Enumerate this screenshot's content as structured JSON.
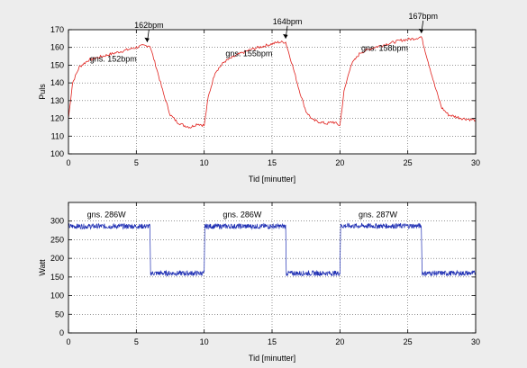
{
  "chart_data": [
    {
      "type": "line",
      "title": "",
      "xlabel": "Tid [minutter]",
      "ylabel": "Puls",
      "xlim": [
        0,
        30
      ],
      "ylim": [
        100,
        170
      ],
      "xticks": [
        0,
        5,
        10,
        15,
        20,
        25,
        30
      ],
      "yticks": [
        100,
        110,
        120,
        130,
        140,
        150,
        160,
        170
      ],
      "grid": true,
      "series": [
        {
          "color": "#e0201c",
          "x": [
            0,
            0.3,
            0.8,
            1.5,
            2.5,
            3.5,
            4.5,
            5.5,
            6.0,
            6.5,
            7.0,
            7.5,
            8.0,
            8.5,
            9.0,
            9.5,
            10.0,
            10.3,
            10.8,
            11.5,
            12.5,
            13.5,
            14.5,
            15.5,
            16.0,
            16.5,
            17.0,
            17.5,
            18.0,
            18.5,
            19.0,
            19.5,
            20.0,
            20.3,
            20.8,
            21.5,
            22.5,
            23.5,
            24.5,
            25.5,
            26.0,
            26.5,
            27.0,
            27.5,
            28.0,
            28.5,
            29.0,
            30.0
          ],
          "y": [
            120,
            140,
            149,
            153,
            155,
            157,
            159,
            161,
            161,
            148,
            134,
            122,
            118,
            116,
            115,
            117,
            116,
            132,
            146,
            152,
            156,
            159,
            161,
            163,
            163,
            150,
            136,
            124,
            119,
            118,
            117,
            118,
            116,
            135,
            150,
            157,
            160,
            162,
            164,
            165,
            166,
            152,
            138,
            126,
            122,
            121,
            120,
            119
          ]
        }
      ],
      "annotations": [
        {
          "text": "162bpm",
          "x": 5.8,
          "y": 162
        },
        {
          "text": "164bpm",
          "x": 16.0,
          "y": 164
        },
        {
          "text": "167bpm",
          "x": 26.0,
          "y": 167
        },
        {
          "text": "gns. 152bpm",
          "x": 3.3,
          "y": 152
        },
        {
          "text": "gns. 155bpm",
          "x": 13.3,
          "y": 155
        },
        {
          "text": "gns. 158bpm",
          "x": 23.3,
          "y": 158
        }
      ]
    },
    {
      "type": "line",
      "title": "",
      "xlabel": "Tid [minutter]",
      "ylabel": "Watt",
      "xlim": [
        0,
        30
      ],
      "ylim": [
        0,
        350
      ],
      "xticks": [
        0,
        5,
        10,
        15,
        20,
        25,
        30
      ],
      "yticks": [
        0,
        50,
        100,
        150,
        200,
        250,
        300
      ],
      "grid": true,
      "series": [
        {
          "color": "#1f2fb3",
          "x": [
            0,
            6.0,
            6.05,
            10.0,
            10.05,
            16.0,
            16.05,
            20.0,
            20.05,
            26.0,
            26.05,
            30.0
          ],
          "y": [
            286,
            286,
            160,
            160,
            286,
            286,
            160,
            160,
            287,
            287,
            160,
            160
          ]
        }
      ],
      "annotations": [
        {
          "text": "gns. 286W",
          "x": 2.8,
          "y": 310
        },
        {
          "text": "gns. 286W",
          "x": 12.8,
          "y": 310
        },
        {
          "text": "gns. 287W",
          "x": 22.8,
          "y": 310
        }
      ]
    }
  ]
}
